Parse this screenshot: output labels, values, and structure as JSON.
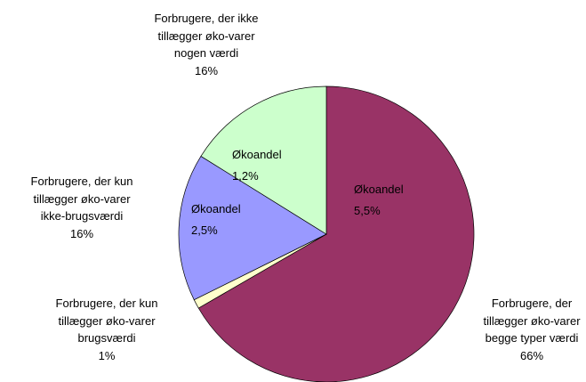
{
  "chart_data": {
    "type": "pie",
    "categories": [
      "Forbrugere, der tillægger øko-varer begge typer værdi",
      "Forbrugere, der kun tillægger øko-varer brugsværdi",
      "Forbrugere, der kun tillægger øko-varer ikke-brugsværdi",
      "Forbrugere, der ikke tillægger øko-varer nogen værdi"
    ],
    "values": [
      66,
      1,
      16,
      16
    ],
    "value_labels": [
      "66%",
      "1%",
      "16%",
      "16%"
    ],
    "colors": [
      "#993366",
      "#ffffcc",
      "#9999ff",
      "#ccffcc"
    ],
    "inner_labels": [
      {
        "title": "Økoandel",
        "value": "5,5%"
      },
      null,
      {
        "title": "Økoandel",
        "value": "2,5%"
      },
      {
        "title": "Økoandel",
        "value": "1,2%"
      }
    ]
  }
}
